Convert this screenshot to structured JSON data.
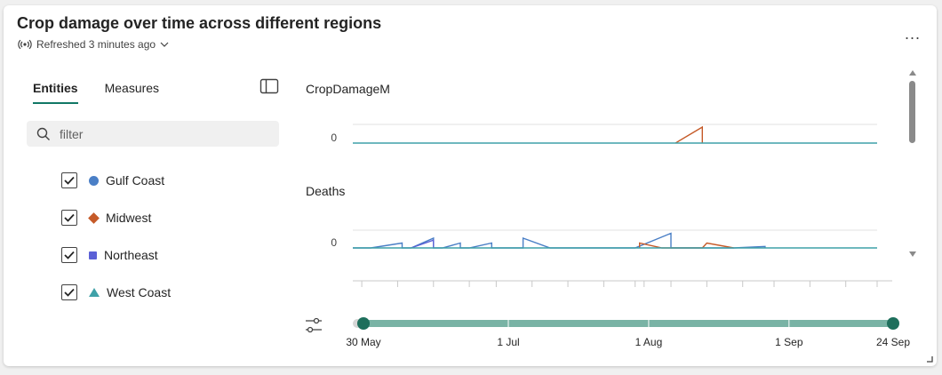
{
  "header": {
    "title": "Crop damage over time across different regions",
    "refresh_status": "Refreshed 3 minutes ago",
    "more_label": "..."
  },
  "tabs": [
    {
      "label": "Entities",
      "active": true
    },
    {
      "label": "Measures",
      "active": false
    }
  ],
  "filter": {
    "placeholder": "filter",
    "value": ""
  },
  "entities": [
    {
      "label": "Gulf Coast",
      "checked": true,
      "marker": "circle",
      "color": "#4a7fc6"
    },
    {
      "label": "Midwest",
      "checked": true,
      "marker": "diamond",
      "color": "#c55a28"
    },
    {
      "label": "Northeast",
      "checked": true,
      "marker": "square",
      "color": "#5b60d6"
    },
    {
      "label": "West Coast",
      "checked": true,
      "marker": "triangle",
      "color": "#3fa1a8"
    }
  ],
  "chart_data": [
    {
      "type": "line",
      "title": "CropDamageM",
      "ytick": "0",
      "series": [
        {
          "name": "Gulf Coast",
          "color": "#4a7fc6",
          "points": []
        },
        {
          "name": "Midwest",
          "color": "#c55a28",
          "points": [
            [
              "2024-08-10",
              0
            ],
            [
              "2024-08-16",
              2
            ],
            [
              "2024-08-16",
              0
            ]
          ]
        },
        {
          "name": "Northeast",
          "color": "#5b60d6",
          "points": []
        },
        {
          "name": "West Coast",
          "color": "#3fa1a8",
          "points": [
            [
              "2024-05-30",
              0
            ],
            [
              "2024-09-24",
              0
            ]
          ]
        }
      ]
    },
    {
      "type": "line",
      "title": "Deaths",
      "ytick": "0",
      "series": [
        {
          "name": "Gulf Coast",
          "color": "#4a7fc6",
          "points": [
            [
              "2024-05-30",
              0
            ],
            [
              "2024-06-03",
              0
            ],
            [
              "2024-06-10",
              1
            ],
            [
              "2024-06-10",
              0
            ],
            [
              "2024-06-12",
              0
            ],
            [
              "2024-06-17",
              2
            ],
            [
              "2024-06-17",
              0
            ],
            [
              "2024-06-19",
              0
            ],
            [
              "2024-06-23",
              1
            ],
            [
              "2024-06-23",
              0
            ],
            [
              "2024-06-25",
              0
            ],
            [
              "2024-06-30",
              1
            ],
            [
              "2024-06-30",
              0
            ],
            [
              "2024-07-07",
              0
            ],
            [
              "2024-07-07",
              2
            ],
            [
              "2024-07-13",
              0
            ],
            [
              "2024-08-01",
              0
            ],
            [
              "2024-08-09",
              3
            ],
            [
              "2024-08-09",
              0
            ],
            [
              "2024-08-23",
              0
            ],
            [
              "2024-08-30",
              0.3
            ],
            [
              "2024-08-30",
              0
            ]
          ]
        },
        {
          "name": "Midwest",
          "color": "#c55a28",
          "points": [
            [
              "2024-08-02",
              0
            ],
            [
              "2024-08-02",
              1
            ],
            [
              "2024-08-07",
              0
            ],
            [
              "2024-08-16",
              0
            ],
            [
              "2024-08-17",
              1
            ],
            [
              "2024-08-23",
              0
            ]
          ]
        },
        {
          "name": "Northeast",
          "color": "#5b60d6",
          "points": [
            [
              "2024-06-12",
              0
            ],
            [
              "2024-06-17",
              1.6
            ],
            [
              "2024-06-17",
              0
            ]
          ]
        },
        {
          "name": "West Coast",
          "color": "#3fa1a8",
          "points": [
            [
              "2024-05-30",
              0
            ],
            [
              "2024-09-24",
              0
            ]
          ]
        }
      ]
    }
  ],
  "time_slider": {
    "start": "2024-05-30",
    "end": "2024-09-24",
    "labels": [
      {
        "text": "30 May",
        "date": "2024-05-30"
      },
      {
        "text": "1 Jul",
        "date": "2024-07-01"
      },
      {
        "text": "1 Aug",
        "date": "2024-08-01"
      },
      {
        "text": "1 Sep",
        "date": "2024-09-01"
      },
      {
        "text": "24 Sep",
        "date": "2024-09-24"
      }
    ],
    "minor_ticks": [
      "2024-06-01",
      "2024-06-09",
      "2024-06-17",
      "2024-06-25",
      "2024-07-01",
      "2024-07-09",
      "2024-07-17",
      "2024-07-25",
      "2024-08-01",
      "2024-08-03",
      "2024-08-09",
      "2024-08-17",
      "2024-08-25",
      "2024-09-01",
      "2024-09-09",
      "2024-09-17",
      "2024-09-24"
    ],
    "range_color": "#79b3a5",
    "handle_color": "#1e6f5c"
  },
  "colors": {
    "accent": "#117865",
    "baseline": "#5fa4ad"
  }
}
